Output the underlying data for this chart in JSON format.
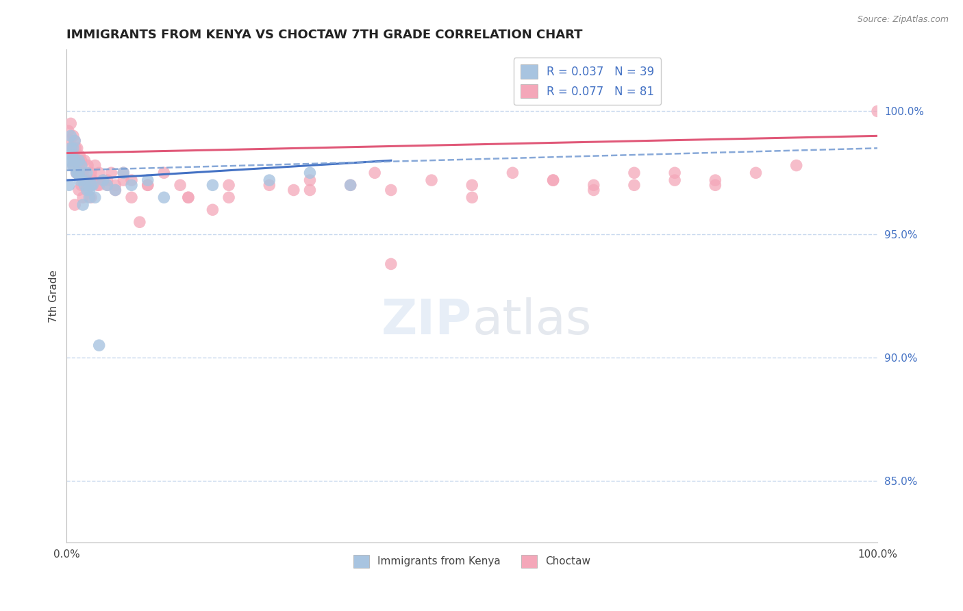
{
  "title": "IMMIGRANTS FROM KENYA VS CHOCTAW 7TH GRADE CORRELATION CHART",
  "source_text": "Source: ZipAtlas.com",
  "ylabel": "7th Grade",
  "legend_kenya": "Immigrants from Kenya",
  "legend_choctaw": "Choctaw",
  "r_kenya": 0.037,
  "n_kenya": 39,
  "r_choctaw": 0.077,
  "n_choctaw": 81,
  "color_kenya": "#a8c4e0",
  "color_choctaw": "#f4a7b9",
  "trendline_kenya_color": "#4472c4",
  "trendline_choctaw_color": "#e05878",
  "dashed_line_color": "#7a9fd4",
  "xlim": [
    0,
    100
  ],
  "ylim": [
    82.5,
    102.5
  ],
  "right_yticks": [
    85.0,
    90.0,
    95.0,
    100.0
  ],
  "background_color": "#ffffff",
  "grid_color": "#c8d8ee",
  "kenya_x": [
    0.3,
    0.5,
    0.8,
    1.0,
    1.2,
    1.5,
    1.8,
    2.0,
    2.2,
    2.5,
    2.8,
    3.0,
    3.5,
    4.0,
    4.5,
    5.0,
    6.0,
    7.0,
    8.0,
    10.0,
    12.0,
    18.0,
    25.0,
    30.0,
    35.0,
    2.0,
    2.5,
    1.5,
    0.8,
    1.0,
    0.5,
    0.3,
    0.6,
    0.7,
    0.4,
    1.3,
    1.6,
    2.8,
    3.2
  ],
  "kenya_y": [
    98.2,
    99.0,
    98.5,
    98.8,
    97.5,
    98.0,
    97.8,
    97.2,
    97.0,
    97.5,
    96.8,
    97.0,
    96.5,
    90.5,
    97.2,
    97.0,
    96.8,
    97.5,
    97.0,
    97.2,
    96.5,
    97.0,
    97.2,
    97.5,
    97.0,
    96.2,
    96.8,
    97.5,
    97.8,
    98.0,
    98.5,
    97.0,
    97.8,
    98.2,
    98.0,
    97.5,
    97.2,
    96.5,
    97.0
  ],
  "choctaw_x": [
    0.2,
    0.4,
    0.5,
    0.6,
    0.8,
    0.9,
    1.0,
    1.1,
    1.2,
    1.3,
    1.5,
    1.6,
    1.7,
    1.8,
    2.0,
    2.2,
    2.4,
    2.6,
    2.8,
    3.0,
    3.2,
    3.5,
    3.8,
    4.0,
    4.5,
    5.0,
    5.5,
    6.0,
    7.0,
    8.0,
    9.0,
    10.0,
    12.0,
    14.0,
    15.0,
    18.0,
    20.0,
    25.0,
    28.0,
    30.0,
    35.0,
    38.0,
    40.0,
    45.0,
    50.0,
    55.0,
    60.0,
    65.0,
    70.0,
    75.0,
    80.0,
    1.0,
    1.5,
    2.0,
    2.5,
    0.5,
    0.8,
    1.2,
    1.8,
    2.2,
    2.5,
    3.0,
    4.0,
    5.0,
    6.0,
    7.0,
    8.0,
    10.0,
    15.0,
    20.0,
    30.0,
    40.0,
    50.0,
    60.0,
    65.0,
    70.0,
    75.0,
    80.0,
    85.0,
    90.0,
    100.0
  ],
  "choctaw_y": [
    99.2,
    98.8,
    99.5,
    98.5,
    99.0,
    98.2,
    98.8,
    98.5,
    98.0,
    98.5,
    97.8,
    98.2,
    97.5,
    98.0,
    97.5,
    98.0,
    97.2,
    97.8,
    97.0,
    97.5,
    97.2,
    97.8,
    97.0,
    97.5,
    97.2,
    97.0,
    97.5,
    96.8,
    97.2,
    96.5,
    95.5,
    97.0,
    97.5,
    97.0,
    96.5,
    96.0,
    96.5,
    97.0,
    96.8,
    97.2,
    97.0,
    97.5,
    96.8,
    97.2,
    97.0,
    97.5,
    97.2,
    97.0,
    97.5,
    97.2,
    97.0,
    96.2,
    96.8,
    96.5,
    97.0,
    98.5,
    97.8,
    97.5,
    97.0,
    97.2,
    96.8,
    96.5,
    97.0,
    97.2,
    97.0,
    97.5,
    97.2,
    97.0,
    96.5,
    97.0,
    96.8,
    93.8,
    96.5,
    97.2,
    96.8,
    97.0,
    97.5,
    97.2,
    97.5,
    97.8,
    100.0
  ],
  "choctaw_trendline": [
    0,
    100,
    98.3,
    99.0
  ],
  "kenya_solid_start_x": 0,
  "kenya_solid_end_x": 40,
  "kenya_solid_start_y": 97.2,
  "kenya_solid_end_y": 98.0,
  "kenya_dashed_start_x": 0,
  "kenya_dashed_end_x": 100,
  "kenya_dashed_start_y": 97.6,
  "kenya_dashed_end_y": 98.5
}
